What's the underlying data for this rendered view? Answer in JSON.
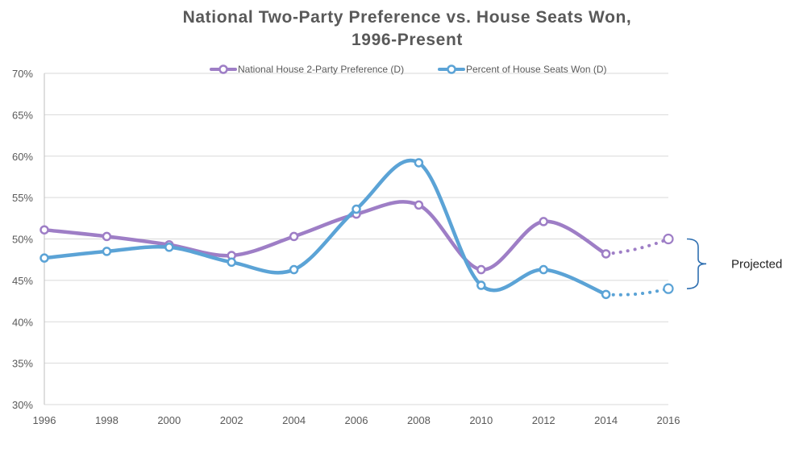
{
  "chart_data": {
    "type": "line",
    "title_line1": "National Two-Party Preference vs. House Seats Won,",
    "title_line2": "1996-Present",
    "xlabel": "",
    "ylabel": "",
    "x": [
      1996,
      1998,
      2000,
      2002,
      2004,
      2006,
      2008,
      2010,
      2012,
      2014,
      2016
    ],
    "x_ticks": [
      "1996",
      "1998",
      "2000",
      "2002",
      "2004",
      "2006",
      "2008",
      "2010",
      "2012",
      "2014",
      "2016"
    ],
    "ylim": [
      30,
      70
    ],
    "y_ticks": [
      30,
      35,
      40,
      45,
      50,
      55,
      60,
      65,
      70
    ],
    "y_tick_labels": [
      "30%",
      "35%",
      "40%",
      "45%",
      "50%",
      "55%",
      "60%",
      "65%",
      "70%"
    ],
    "grid": "horizontal",
    "legend_position": "top",
    "series": [
      {
        "name": "National House 2-Party Preference (D)",
        "color": "#9e7ec6",
        "values": [
          51.1,
          50.3,
          49.3,
          48.0,
          50.3,
          53.0,
          54.1,
          46.3,
          52.1,
          48.2,
          50.0
        ],
        "projected_from_index": 9
      },
      {
        "name": "Percent of House Seats Won (D)",
        "color": "#5ba3d6",
        "values": [
          47.7,
          48.5,
          49.0,
          47.2,
          46.3,
          53.6,
          59.2,
          44.4,
          46.3,
          43.3,
          44.0
        ],
        "projected_from_index": 9
      }
    ],
    "annotation": {
      "text": "Projected",
      "bracket_top": 50.0,
      "bracket_bottom": 44.0,
      "color": "#2f6fb0"
    }
  }
}
